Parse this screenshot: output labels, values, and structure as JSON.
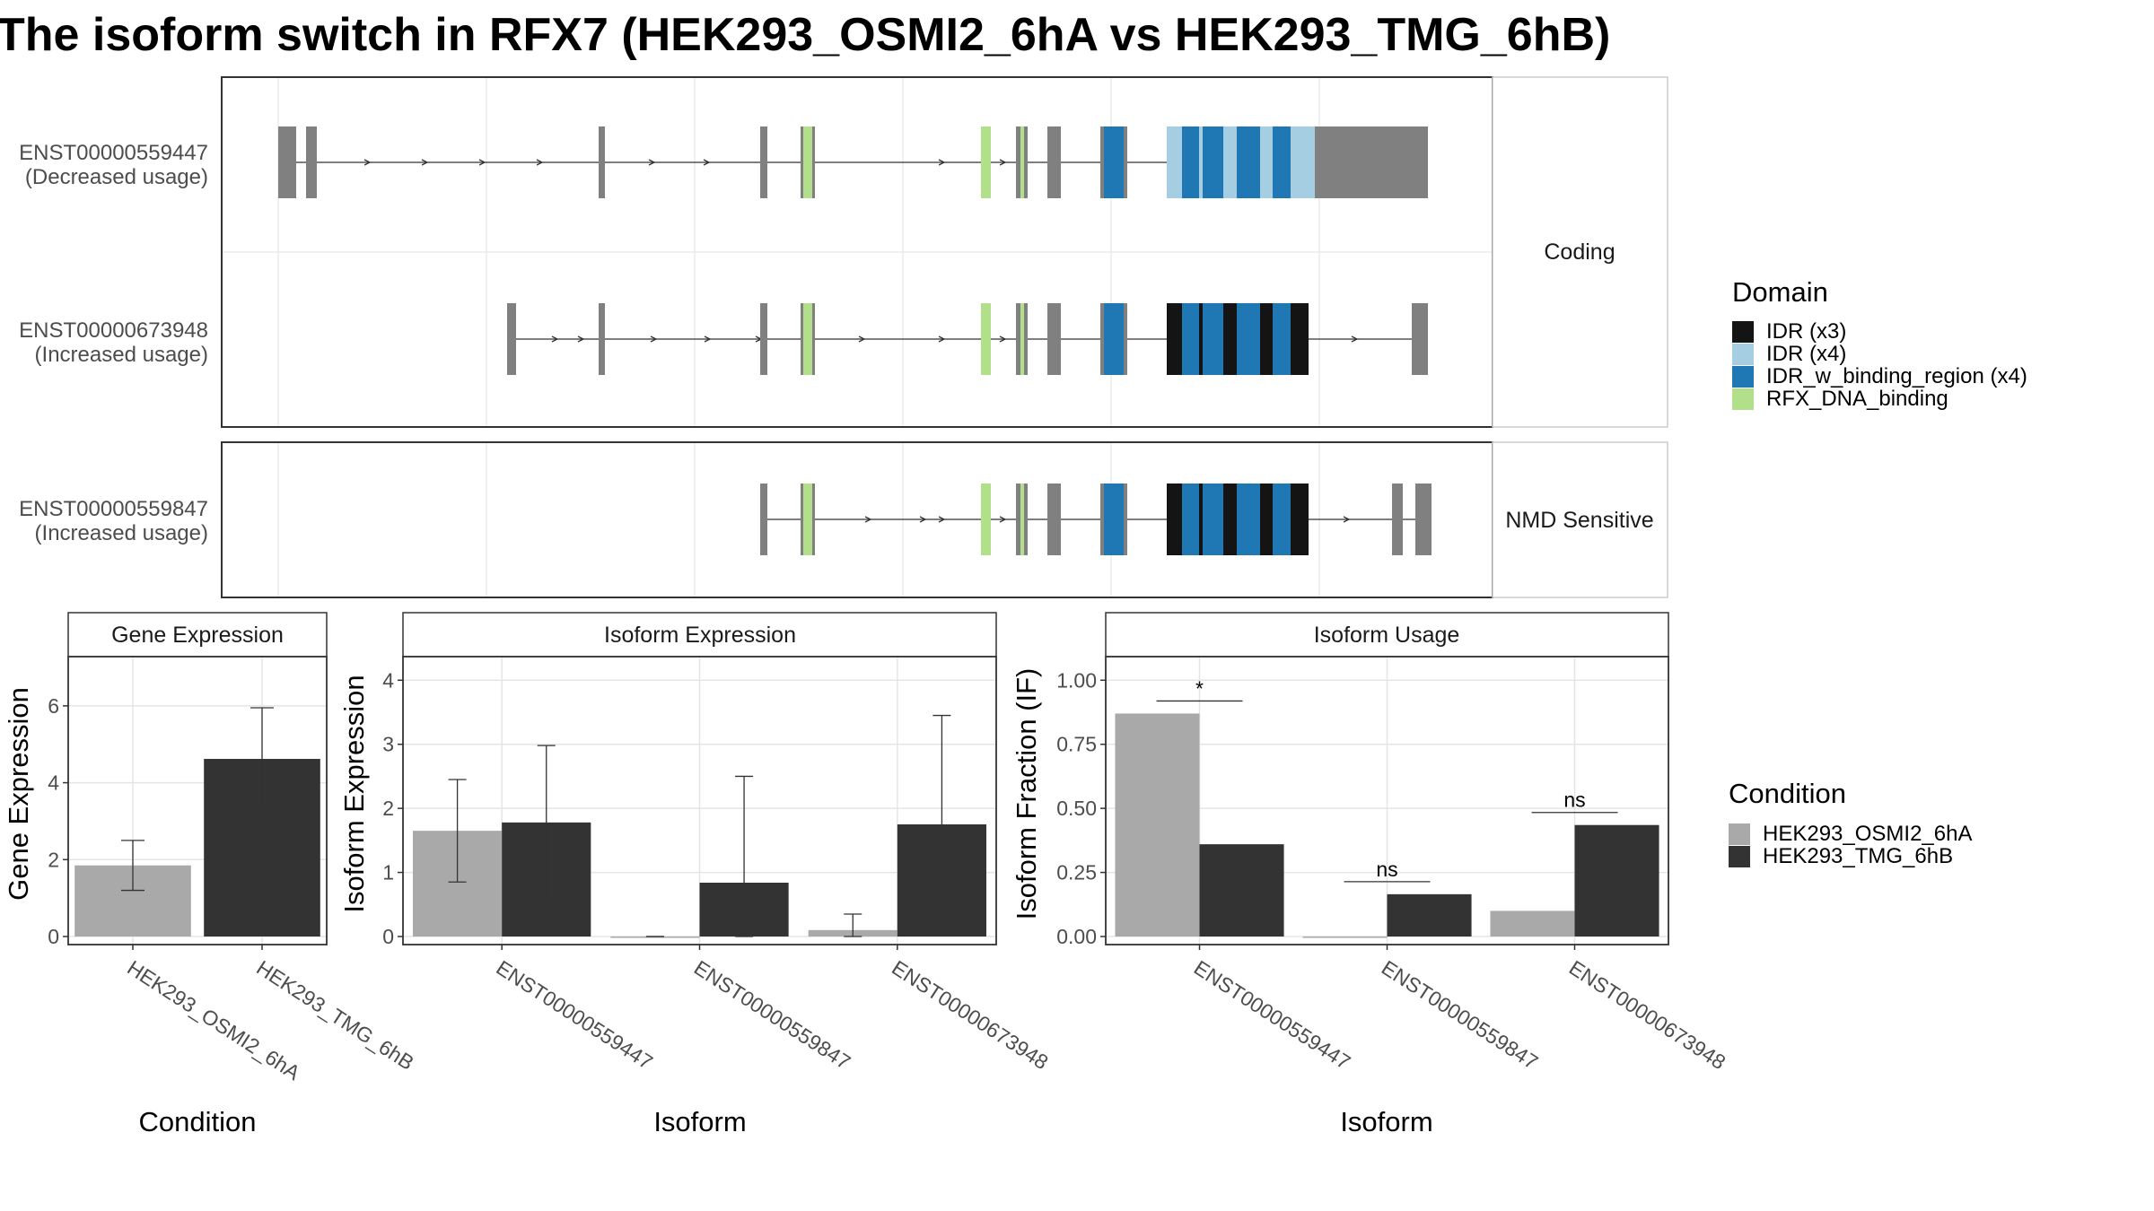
{
  "title": "The isoform switch in RFX7 (HEK293_OSMI2_6hA vs HEK293_TMG_6hB)",
  "colors": {
    "intron_exon": "#808080",
    "IDR_x3": "#141414",
    "IDR_x4": "#a6cee3",
    "IDR_w_binding_region": "#1f78b4",
    "RFX_DNA_binding": "#b2df8a",
    "cond_A": "#a9a9a9",
    "cond_B": "#333333"
  },
  "structure": {
    "strips": [
      "Coding",
      "NMD Sensitive"
    ],
    "transcripts": [
      {
        "id": "ENST00000559447",
        "usage": "(Decreased usage)",
        "panel": "Coding"
      },
      {
        "id": "ENST00000673948",
        "usage": "(Increased usage)",
        "panel": "Coding"
      },
      {
        "id": "ENST00000559847",
        "usage": "(Increased usage)",
        "panel": "NMD Sensitive"
      }
    ],
    "legend": {
      "title": "Domain",
      "items": [
        {
          "label": "IDR (x3)",
          "color_key": "IDR_x3"
        },
        {
          "label": "IDR (x4)",
          "color_key": "IDR_x4"
        },
        {
          "label": "IDR_w_binding_region (x4)",
          "color_key": "IDR_w_binding_region"
        },
        {
          "label": "RFX_DNA_binding",
          "color_key": "RFX_DNA_binding"
        }
      ]
    }
  },
  "chart_data": [
    {
      "type": "bar",
      "panel_title": "Gene Expression",
      "xlabel": "Condition",
      "ylabel": "Gene Expression",
      "categories": [
        "HEK293_OSMI2_6hA",
        "HEK293_TMG_6hB"
      ],
      "values": [
        1.85,
        4.62
      ],
      "error_low": [
        1.2,
        3.3
      ],
      "error_high": [
        2.5,
        5.95
      ],
      "ylim": [
        0,
        7
      ],
      "yticks": [
        "0",
        "2",
        "4",
        "6"
      ]
    },
    {
      "type": "bar",
      "panel_title": "Isoform Expression",
      "xlabel": "Isoform",
      "ylabel": "Isoform Expression",
      "categories": [
        "ENST00000559447",
        "ENST00000559847",
        "ENST00000673948"
      ],
      "series": [
        {
          "name": "HEK293_OSMI2_6hA",
          "values": [
            1.65,
            0.0,
            0.1
          ],
          "error_low": [
            0.85,
            0.0,
            0.0
          ],
          "error_high": [
            2.45,
            0.0,
            0.35
          ]
        },
        {
          "name": "HEK293_TMG_6hB",
          "values": [
            1.78,
            0.84,
            1.75
          ],
          "error_low": [
            0.58,
            0.0,
            0.03
          ],
          "error_high": [
            2.98,
            2.5,
            3.45
          ]
        }
      ],
      "ylim": [
        0,
        4.2
      ],
      "yticks": [
        "0",
        "1",
        "2",
        "3",
        "4"
      ]
    },
    {
      "type": "bar",
      "panel_title": "Isoform Usage",
      "xlabel": "Isoform",
      "ylabel": "Isoform Fraction (IF)",
      "categories": [
        "ENST00000559447",
        "ENST00000559847",
        "ENST00000673948"
      ],
      "series": [
        {
          "name": "HEK293_OSMI2_6hA",
          "values": [
            0.87,
            0.0,
            0.1
          ]
        },
        {
          "name": "HEK293_TMG_6hB",
          "values": [
            0.36,
            0.165,
            0.435
          ]
        }
      ],
      "significance": [
        "*",
        "ns",
        "ns"
      ],
      "ylim": [
        0,
        1.05
      ],
      "yticks": [
        "0.00",
        "0.25",
        "0.50",
        "0.75",
        "1.00"
      ]
    }
  ],
  "condition_legend": {
    "title": "Condition",
    "items": [
      {
        "label": "HEK293_OSMI2_6hA",
        "color_key": "cond_A"
      },
      {
        "label": "HEK293_TMG_6hB",
        "color_key": "cond_B"
      }
    ]
  }
}
